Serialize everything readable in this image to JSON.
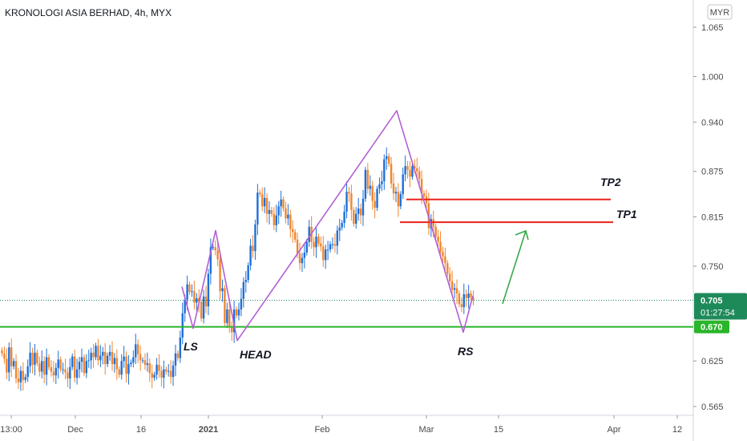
{
  "chart_data": {
    "type": "candlestick",
    "title": "KRONOLOGI ASIA BERHAD, 4h, MYX",
    "currency": "MYR",
    "y_axis_ticks": [
      "1.065",
      "1.000",
      "0.940",
      "0.875",
      "0.815",
      "0.750",
      "0.625",
      "0.565"
    ],
    "x_axis_ticks": [
      "13:00",
      "Dec",
      "16",
      "2021",
      "Feb",
      "Mar",
      "15",
      "Apr",
      "12"
    ],
    "ylim": [
      0.555,
      1.085
    ],
    "last_price": "0.705",
    "countdown": "01:27:54",
    "support_level": "0.670",
    "colors": {
      "up": "#1e6fd9",
      "down": "#f0862e",
      "support": "#2ab52a",
      "target": "#e8221b",
      "pattern": "#b35fd4",
      "arrow": "#3aa84a",
      "badge_price": "#1e8a5a"
    },
    "annotations": [
      {
        "label": "LS",
        "price": 0.667
      },
      {
        "label": "HEAD",
        "price": 0.652
      },
      {
        "label": "RS",
        "price": 0.662
      },
      {
        "label": "TP2",
        "price": 0.838
      },
      {
        "label": "TP1",
        "price": 0.808
      }
    ],
    "pattern_line_prices": [
      0.723,
      0.668,
      0.797,
      0.652,
      0.955,
      0.663,
      0.711
    ],
    "target_lines": [
      {
        "label": "TP2",
        "price": 0.838
      },
      {
        "label": "TP1",
        "price": 0.808
      }
    ],
    "candles_close": [
      0.635,
      0.628,
      0.61,
      0.643,
      0.618,
      0.625,
      0.602,
      0.597,
      0.612,
      0.6,
      0.604,
      0.618,
      0.636,
      0.62,
      0.636,
      0.622,
      0.611,
      0.625,
      0.607,
      0.63,
      0.617,
      0.611,
      0.606,
      0.616,
      0.627,
      0.614,
      0.614,
      0.61,
      0.602,
      0.617,
      0.631,
      0.603,
      0.614,
      0.624,
      0.63,
      0.609,
      0.625,
      0.626,
      0.636,
      0.63,
      0.645,
      0.626,
      0.632,
      0.637,
      0.621,
      0.632,
      0.637,
      0.621,
      0.629,
      0.614,
      0.607,
      0.625,
      0.631,
      0.608,
      0.621,
      0.623,
      0.63,
      0.647,
      0.634,
      0.626,
      0.626,
      0.62,
      0.622,
      0.609,
      0.603,
      0.607,
      0.62,
      0.612,
      0.603,
      0.614,
      0.611,
      0.612,
      0.604,
      0.619,
      0.635,
      0.629,
      0.656,
      0.688,
      0.706,
      0.726,
      0.716,
      0.717,
      0.702,
      0.708,
      0.703,
      0.681,
      0.71,
      0.697,
      0.74,
      0.775,
      0.775,
      0.771,
      0.759,
      0.717,
      0.721,
      0.675,
      0.693,
      0.671,
      0.663,
      0.693,
      0.685,
      0.693,
      0.707,
      0.729,
      0.732,
      0.751,
      0.777,
      0.77,
      0.805,
      0.847,
      0.845,
      0.829,
      0.84,
      0.819,
      0.824,
      0.819,
      0.804,
      0.817,
      0.829,
      0.838,
      0.826,
      0.813,
      0.818,
      0.799,
      0.795,
      0.785,
      0.767,
      0.754,
      0.761,
      0.768,
      0.782,
      0.802,
      0.782,
      0.775,
      0.789,
      0.78,
      0.776,
      0.758,
      0.772,
      0.772,
      0.779,
      0.779,
      0.777,
      0.797,
      0.801,
      0.807,
      0.822,
      0.848,
      0.846,
      0.824,
      0.806,
      0.819,
      0.826,
      0.817,
      0.839,
      0.877,
      0.852,
      0.856,
      0.836,
      0.827,
      0.852,
      0.858,
      0.862,
      0.891,
      0.895,
      0.885,
      0.859,
      0.846,
      0.848,
      0.829,
      0.845,
      0.871,
      0.882,
      0.877,
      0.868,
      0.882,
      0.879,
      0.875,
      0.865,
      0.846,
      0.842,
      0.833,
      0.8,
      0.812,
      0.802,
      0.789,
      0.782,
      0.769,
      0.763,
      0.754,
      0.74,
      0.73,
      0.719,
      0.721,
      0.714,
      0.7,
      0.696,
      0.713,
      0.708,
      0.714,
      0.709,
      0.705
    ]
  }
}
